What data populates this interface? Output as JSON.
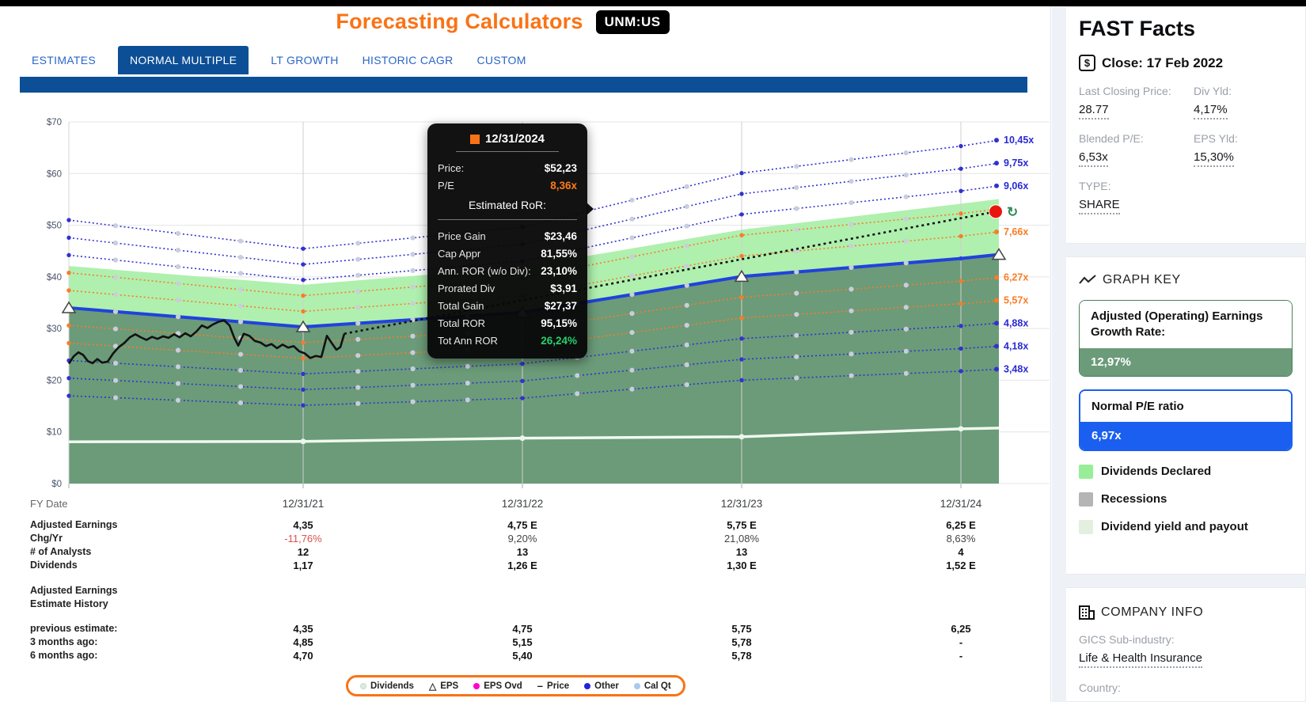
{
  "colors": {
    "accent_orange": "#f97316",
    "navy": "#0d4f96",
    "tab_blue": "#2a66c8",
    "line_blue": "#3232cf",
    "line_orange": "#f97c26",
    "normal_pe_blue": "#2142dd",
    "dark_green_fill": "#6b9b79",
    "light_green_fill": "#aff0ae",
    "red_dot": "#e8170d",
    "negative_red": "#d9534f",
    "tooltip_green": "#27d06c",
    "cal_qt_gray": "#c8cedb"
  },
  "header": {
    "title": "Forecasting Calculators",
    "ticker": "UNM:US"
  },
  "tabs": [
    {
      "label": "ESTIMATES",
      "active": false
    },
    {
      "label": "NORMAL MULTIPLE",
      "active": true
    },
    {
      "label": "LT GROWTH",
      "active": false
    },
    {
      "label": "HISTORIC CAGR",
      "active": false
    },
    {
      "label": "CUSTOM",
      "active": false
    }
  ],
  "chart_data": {
    "type": "line",
    "title": "",
    "x_axis_label": "FY Date",
    "categories": [
      "12/31/21",
      "12/31/22",
      "12/31/23",
      "12/31/24"
    ],
    "ylim": [
      0,
      70
    ],
    "y_ticks": [
      "$0",
      "$10",
      "$20",
      "$30",
      "$40",
      "$50",
      "$60",
      "$70"
    ],
    "grid": true,
    "adjusted_earnings": [
      4.35,
      4.75,
      5.75,
      6.25
    ],
    "left_edge_earnings": 4.88,
    "dividends": [
      1.17,
      1.26,
      1.3,
      1.52
    ],
    "left_edge_dividends": 1.16,
    "normal_pe": 6.97,
    "multiple_lines": [
      {
        "multiple": 10.45,
        "label": "10,45x",
        "color": "blue",
        "style": "dotted"
      },
      {
        "multiple": 9.75,
        "label": "9,75x",
        "color": "blue",
        "style": "dotted"
      },
      {
        "multiple": 9.06,
        "label": "9,06x",
        "color": "blue",
        "style": "dotted"
      },
      {
        "multiple": 8.36,
        "label": "",
        "color": "orange",
        "style": "dotted",
        "end_marker": "red-dot"
      },
      {
        "multiple": 7.66,
        "label": "7,66x",
        "color": "orange",
        "style": "dotted"
      },
      {
        "multiple": 6.97,
        "label": "",
        "color": "normal",
        "style": "solid",
        "end_marker": "eps-triangle"
      },
      {
        "multiple": 6.27,
        "label": "6,27x",
        "color": "orange",
        "style": "dotted"
      },
      {
        "multiple": 5.57,
        "label": "5,57x",
        "color": "orange",
        "style": "dotted"
      },
      {
        "multiple": 4.88,
        "label": "4,88x",
        "color": "blue",
        "style": "dotted"
      },
      {
        "multiple": 4.18,
        "label": "4,18x",
        "color": "blue",
        "style": "dotted"
      },
      {
        "multiple": 3.48,
        "label": "3,48x",
        "color": "blue",
        "style": "dotted"
      }
    ],
    "price_history": [
      [
        87,
        23.2
      ],
      [
        93,
        24.6
      ],
      [
        99,
        25.4
      ],
      [
        105,
        24.9
      ],
      [
        111,
        23.7
      ],
      [
        117,
        23.3
      ],
      [
        123,
        24.1
      ],
      [
        129,
        23.4
      ],
      [
        136,
        23.6
      ],
      [
        143,
        25.2
      ],
      [
        150,
        26.4
      ],
      [
        157,
        27.2
      ],
      [
        164,
        28.3
      ],
      [
        171,
        28.9
      ],
      [
        178,
        28.3
      ],
      [
        185,
        27.8
      ],
      [
        192,
        28.4
      ],
      [
        199,
        28.0
      ],
      [
        206,
        28.5
      ],
      [
        213,
        28.2
      ],
      [
        220,
        28.9
      ],
      [
        227,
        28.3
      ],
      [
        234,
        29.1
      ],
      [
        241,
        28.5
      ],
      [
        248,
        29.4
      ],
      [
        255,
        30.6
      ],
      [
        262,
        30.1
      ],
      [
        269,
        30.8
      ],
      [
        276,
        31.3
      ],
      [
        283,
        31.6
      ],
      [
        290,
        30.6
      ],
      [
        296,
        28.2
      ],
      [
        301,
        26.7
      ],
      [
        308,
        29.0
      ],
      [
        315,
        28.6
      ],
      [
        322,
        27.6
      ],
      [
        329,
        27.3
      ],
      [
        336,
        26.6
      ],
      [
        343,
        27.0
      ],
      [
        350,
        26.2
      ],
      [
        357,
        26.9
      ],
      [
        364,
        26.3
      ],
      [
        371,
        26.6
      ],
      [
        378,
        25.6
      ],
      [
        385,
        25.2
      ],
      [
        392,
        24.3
      ],
      [
        399,
        24.7
      ],
      [
        406,
        24.5
      ],
      [
        413,
        28.6
      ],
      [
        419,
        27.2
      ],
      [
        425,
        25.9
      ],
      [
        430,
        26.4
      ],
      [
        435,
        29.0
      ]
    ],
    "forecast": {
      "end_price": 52.23,
      "end_pe": 8.36
    }
  },
  "tooltip": {
    "date": "12/31/2024",
    "rows_top": [
      {
        "label": "Price:",
        "value": "$52,23",
        "color": "#ffffff"
      },
      {
        "label": "P/E",
        "value": "8,36x",
        "color": "#ff7a1a"
      }
    ],
    "section": "Estimated RoR:",
    "rows_bottom": [
      {
        "label": "Price Gain",
        "value": "$23,46",
        "color": "#ffffff"
      },
      {
        "label": "Cap Appr",
        "value": "81,55%",
        "color": "#ffffff"
      },
      {
        "label": "Ann. ROR (w/o Div):",
        "value": "23,10%",
        "color": "#ffffff"
      },
      {
        "label": "Prorated Div",
        "value": "$3,91",
        "color": "#ffffff"
      },
      {
        "label": "Total Gain",
        "value": "$27,37",
        "color": "#ffffff"
      },
      {
        "label": "Total ROR",
        "value": "95,15%",
        "color": "#ffffff"
      },
      {
        "label": "Tot Ann ROR",
        "value": "26,24%",
        "color": "#27d06c"
      }
    ]
  },
  "table": {
    "fy_label": "FY Date",
    "columns": [
      "12/31/21",
      "12/31/22",
      "12/31/23",
      "12/31/24"
    ],
    "rows": [
      {
        "label": "Adjusted Earnings",
        "values": [
          "4,35",
          "4,75 E",
          "5,75 E",
          "6,25 E"
        ],
        "style": "bold"
      },
      {
        "label": "Chg/Yr",
        "values": [
          "-11,76%",
          "9,20%",
          "21,08%",
          "8,63%"
        ],
        "style": "plain-first-red"
      },
      {
        "label": "# of Analysts",
        "values": [
          "12",
          "13",
          "13",
          "4"
        ],
        "style": "bold"
      },
      {
        "label": "Dividends",
        "values": [
          "1,17",
          "1,26 E",
          "1,30 E",
          "1,52 E"
        ],
        "style": "bold"
      }
    ],
    "history_header_line1": "Adjusted Earnings",
    "history_header_line2": "Estimate History",
    "history_rows": [
      {
        "label": "previous estimate:",
        "values": [
          "4,35",
          "4,75",
          "5,75",
          "6,25"
        ]
      },
      {
        "label": "3 months ago:",
        "values": [
          "4,85",
          "5,15",
          "5,78",
          "-"
        ]
      },
      {
        "label": "6 months ago:",
        "values": [
          "4,70",
          "5,40",
          "5,78",
          "-"
        ]
      }
    ]
  },
  "legend": {
    "items": [
      {
        "label": "Dividends",
        "marker": "dot",
        "color": "#dcecdc"
      },
      {
        "label": "EPS",
        "marker": "triangle",
        "color": "#ffffff"
      },
      {
        "label": "EPS Ovd",
        "marker": "dot",
        "color": "#ff00cc"
      },
      {
        "label": "Price",
        "marker": "dash",
        "color": "#111111"
      },
      {
        "label": "Other",
        "marker": "dot",
        "color": "#2222dd"
      },
      {
        "label": "Cal Qt",
        "marker": "dot",
        "color": "#a9c9f2"
      }
    ]
  },
  "sidebar": {
    "fast_facts": {
      "title": "FAST Facts",
      "close_label": "Close: 17 Feb 2022",
      "fields": [
        {
          "label": "Last Closing Price:",
          "value": "28.77"
        },
        {
          "label": "Div Yld:",
          "value": "4,17%"
        },
        {
          "label": "Blended P/E:",
          "value": "6,53x"
        },
        {
          "label": "EPS Yld:",
          "value": "15,30%"
        },
        {
          "label": "TYPE:",
          "value": "SHARE"
        }
      ]
    },
    "graph_key": {
      "title": "GRAPH KEY",
      "growth_label": "Adjusted (Operating) Earnings Growth Rate:",
      "growth_value": "12,97%",
      "pe_label": "Normal P/E ratio",
      "pe_value": "6,97x",
      "legend": [
        {
          "label": "Dividends Declared",
          "color": "#98ee98"
        },
        {
          "label": "Recessions",
          "color": "#b5b5b5"
        },
        {
          "label": "Dividend yield and payout",
          "color": "#e3efdf"
        }
      ]
    },
    "company_info": {
      "title": "COMPANY INFO",
      "fields": [
        {
          "label": "GICS Sub-industry:",
          "value": "Life & Health Insurance"
        },
        {
          "label": "Country:",
          "value": ""
        }
      ]
    }
  }
}
